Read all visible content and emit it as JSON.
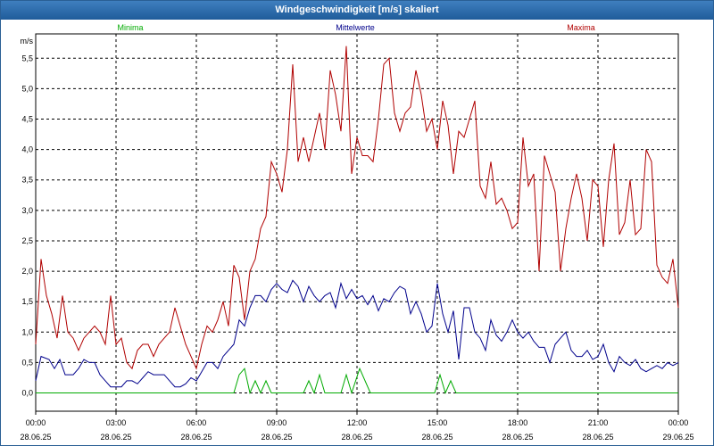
{
  "window": {
    "title": "Windgeschwindigkeit [m/s] skaliert"
  },
  "chart_data": {
    "type": "line",
    "ylabel": "m/s",
    "ylim": [
      -0.3,
      5.9
    ],
    "xlim": [
      0,
      24
    ],
    "y_ticks": [
      "0,0",
      "0,5",
      "1,0",
      "1,5",
      "2,0",
      "2,5",
      "3,0",
      "3,5",
      "4,0",
      "4,5",
      "5,0",
      "5,5"
    ],
    "y_tick_values": [
      0,
      0.5,
      1,
      1.5,
      2,
      2.5,
      3,
      3.5,
      4,
      4.5,
      5,
      5.5
    ],
    "x_ticks": [
      {
        "time": "00:00",
        "date": "28.06.25",
        "hour": 0
      },
      {
        "time": "03:00",
        "date": "28.06.25",
        "hour": 3
      },
      {
        "time": "06:00",
        "date": "28.06.25",
        "hour": 6
      },
      {
        "time": "09:00",
        "date": "28.06.25",
        "hour": 9
      },
      {
        "time": "12:00",
        "date": "28.06.25",
        "hour": 12
      },
      {
        "time": "15:00",
        "date": "28.06.25",
        "hour": 15
      },
      {
        "time": "18:00",
        "date": "28.06.25",
        "hour": 18
      },
      {
        "time": "21:00",
        "date": "28.06.25",
        "hour": 21
      },
      {
        "time": "00:00",
        "date": "29.06.25",
        "hour": 24
      }
    ],
    "grid": true,
    "legend_position": "top",
    "series": [
      {
        "name": "Minima",
        "color": "#00aa00",
        "points": [
          [
            0,
            0
          ],
          [
            7.4,
            0
          ],
          [
            7.6,
            0.3
          ],
          [
            7.8,
            0.4
          ],
          [
            8.0,
            0
          ],
          [
            8.2,
            0.2
          ],
          [
            8.4,
            0
          ],
          [
            8.6,
            0.2
          ],
          [
            8.8,
            0
          ],
          [
            10.0,
            0
          ],
          [
            10.2,
            0.2
          ],
          [
            10.4,
            0
          ],
          [
            10.6,
            0.3
          ],
          [
            10.8,
            0
          ],
          [
            11.4,
            0
          ],
          [
            11.6,
            0.3
          ],
          [
            11.8,
            0
          ],
          [
            12.1,
            0.4
          ],
          [
            12.5,
            0
          ],
          [
            14.9,
            0
          ],
          [
            15.1,
            0.3
          ],
          [
            15.3,
            0
          ],
          [
            15.5,
            0.2
          ],
          [
            15.7,
            0
          ],
          [
            24,
            0
          ]
        ]
      },
      {
        "name": "Mittelwerte",
        "color": "#00008b",
        "points": [
          [
            0,
            0.2
          ],
          [
            0.2,
            0.6
          ],
          [
            0.5,
            0.55
          ],
          [
            0.7,
            0.4
          ],
          [
            0.9,
            0.55
          ],
          [
            1.1,
            0.3
          ],
          [
            1.4,
            0.3
          ],
          [
            1.6,
            0.4
          ],
          [
            1.8,
            0.55
          ],
          [
            2.0,
            0.5
          ],
          [
            2.2,
            0.5
          ],
          [
            2.4,
            0.3
          ],
          [
            2.6,
            0.2
          ],
          [
            2.8,
            0.1
          ],
          [
            3.0,
            0.1
          ],
          [
            3.2,
            0.1
          ],
          [
            3.4,
            0.2
          ],
          [
            3.6,
            0.2
          ],
          [
            3.8,
            0.15
          ],
          [
            4.0,
            0.25
          ],
          [
            4.2,
            0.35
          ],
          [
            4.4,
            0.3
          ],
          [
            4.6,
            0.3
          ],
          [
            4.8,
            0.3
          ],
          [
            5.0,
            0.2
          ],
          [
            5.2,
            0.1
          ],
          [
            5.4,
            0.1
          ],
          [
            5.6,
            0.15
          ],
          [
            5.8,
            0.25
          ],
          [
            6.0,
            0.2
          ],
          [
            6.2,
            0.35
          ],
          [
            6.4,
            0.5
          ],
          [
            6.6,
            0.5
          ],
          [
            6.8,
            0.4
          ],
          [
            7.0,
            0.6
          ],
          [
            7.2,
            0.7
          ],
          [
            7.4,
            0.8
          ],
          [
            7.6,
            1.2
          ],
          [
            7.8,
            1.1
          ],
          [
            8.0,
            1.4
          ],
          [
            8.2,
            1.6
          ],
          [
            8.4,
            1.6
          ],
          [
            8.6,
            1.5
          ],
          [
            8.8,
            1.7
          ],
          [
            9.0,
            1.8
          ],
          [
            9.2,
            1.7
          ],
          [
            9.4,
            1.65
          ],
          [
            9.6,
            1.85
          ],
          [
            9.8,
            1.75
          ],
          [
            10.0,
            1.5
          ],
          [
            10.2,
            1.75
          ],
          [
            10.4,
            1.6
          ],
          [
            10.6,
            1.5
          ],
          [
            10.8,
            1.6
          ],
          [
            11.0,
            1.65
          ],
          [
            11.2,
            1.4
          ],
          [
            11.4,
            1.8
          ],
          [
            11.6,
            1.55
          ],
          [
            11.8,
            1.7
          ],
          [
            12.0,
            1.55
          ],
          [
            12.2,
            1.6
          ],
          [
            12.4,
            1.45
          ],
          [
            12.6,
            1.6
          ],
          [
            12.8,
            1.35
          ],
          [
            13.0,
            1.55
          ],
          [
            13.2,
            1.5
          ],
          [
            13.4,
            1.65
          ],
          [
            13.6,
            1.75
          ],
          [
            13.8,
            1.7
          ],
          [
            14.0,
            1.3
          ],
          [
            14.2,
            1.5
          ],
          [
            14.4,
            1.3
          ],
          [
            14.6,
            1.0
          ],
          [
            14.8,
            1.1
          ],
          [
            15.0,
            1.8
          ],
          [
            15.2,
            1.3
          ],
          [
            15.4,
            1.0
          ],
          [
            15.6,
            1.35
          ],
          [
            15.8,
            0.55
          ],
          [
            16.0,
            1.4
          ],
          [
            16.2,
            1.4
          ],
          [
            16.4,
            1.0
          ],
          [
            16.6,
            0.9
          ],
          [
            16.8,
            0.7
          ],
          [
            17.0,
            1.2
          ],
          [
            17.2,
            0.95
          ],
          [
            17.4,
            0.85
          ],
          [
            17.6,
            1.0
          ],
          [
            17.8,
            1.2
          ],
          [
            18.0,
            1.0
          ],
          [
            18.2,
            0.9
          ],
          [
            18.4,
            1.0
          ],
          [
            18.6,
            0.85
          ],
          [
            18.8,
            0.75
          ],
          [
            19.0,
            0.75
          ],
          [
            19.2,
            0.5
          ],
          [
            19.4,
            0.8
          ],
          [
            19.6,
            0.9
          ],
          [
            19.8,
            1.0
          ],
          [
            20.0,
            0.7
          ],
          [
            20.2,
            0.6
          ],
          [
            20.4,
            0.6
          ],
          [
            20.6,
            0.7
          ],
          [
            20.8,
            0.55
          ],
          [
            21.0,
            0.6
          ],
          [
            21.2,
            0.8
          ],
          [
            21.4,
            0.5
          ],
          [
            21.6,
            0.35
          ],
          [
            21.8,
            0.6
          ],
          [
            22.0,
            0.5
          ],
          [
            22.2,
            0.45
          ],
          [
            22.4,
            0.55
          ],
          [
            22.6,
            0.4
          ],
          [
            22.8,
            0.35
          ],
          [
            23.0,
            0.4
          ],
          [
            23.2,
            0.45
          ],
          [
            23.4,
            0.4
          ],
          [
            23.6,
            0.5
          ],
          [
            23.8,
            0.45
          ],
          [
            24.0,
            0.5
          ]
        ]
      },
      {
        "name": "Maxima",
        "color": "#b00000",
        "points": [
          [
            0,
            0.8
          ],
          [
            0.2,
            2.2
          ],
          [
            0.4,
            1.6
          ],
          [
            0.6,
            1.3
          ],
          [
            0.8,
            0.9
          ],
          [
            1.0,
            1.6
          ],
          [
            1.2,
            1.0
          ],
          [
            1.4,
            0.9
          ],
          [
            1.6,
            0.7
          ],
          [
            1.8,
            0.9
          ],
          [
            2.0,
            1.0
          ],
          [
            2.2,
            1.1
          ],
          [
            2.4,
            1.0
          ],
          [
            2.6,
            0.8
          ],
          [
            2.8,
            1.6
          ],
          [
            3.0,
            0.8
          ],
          [
            3.2,
            0.9
          ],
          [
            3.4,
            0.5
          ],
          [
            3.6,
            0.4
          ],
          [
            3.8,
            0.7
          ],
          [
            4.0,
            0.8
          ],
          [
            4.2,
            0.8
          ],
          [
            4.4,
            0.6
          ],
          [
            4.6,
            0.8
          ],
          [
            4.8,
            0.9
          ],
          [
            5.0,
            1.0
          ],
          [
            5.2,
            1.4
          ],
          [
            5.4,
            1.1
          ],
          [
            5.6,
            0.8
          ],
          [
            5.8,
            0.6
          ],
          [
            6.0,
            0.4
          ],
          [
            6.2,
            0.8
          ],
          [
            6.4,
            1.1
          ],
          [
            6.6,
            1.0
          ],
          [
            6.8,
            1.2
          ],
          [
            7.0,
            1.5
          ],
          [
            7.2,
            1.1
          ],
          [
            7.4,
            2.1
          ],
          [
            7.6,
            1.9
          ],
          [
            7.8,
            1.2
          ],
          [
            8.0,
            2.0
          ],
          [
            8.2,
            2.2
          ],
          [
            8.4,
            2.7
          ],
          [
            8.6,
            2.9
          ],
          [
            8.8,
            3.8
          ],
          [
            9.0,
            3.6
          ],
          [
            9.2,
            3.3
          ],
          [
            9.4,
            4.0
          ],
          [
            9.6,
            5.4
          ],
          [
            9.8,
            3.8
          ],
          [
            10.0,
            4.2
          ],
          [
            10.2,
            3.8
          ],
          [
            10.4,
            4.2
          ],
          [
            10.6,
            4.6
          ],
          [
            10.8,
            4.0
          ],
          [
            11.0,
            5.3
          ],
          [
            11.2,
            4.9
          ],
          [
            11.4,
            4.3
          ],
          [
            11.6,
            5.7
          ],
          [
            11.8,
            3.6
          ],
          [
            12.0,
            4.2
          ],
          [
            12.2,
            3.9
          ],
          [
            12.4,
            3.9
          ],
          [
            12.6,
            3.8
          ],
          [
            12.8,
            4.5
          ],
          [
            13.0,
            5.4
          ],
          [
            13.2,
            5.5
          ],
          [
            13.4,
            4.6
          ],
          [
            13.6,
            4.3
          ],
          [
            13.8,
            4.6
          ],
          [
            14.0,
            4.7
          ],
          [
            14.2,
            5.3
          ],
          [
            14.4,
            4.9
          ],
          [
            14.6,
            4.3
          ],
          [
            14.8,
            4.5
          ],
          [
            15.0,
            4.0
          ],
          [
            15.2,
            4.8
          ],
          [
            15.4,
            4.4
          ],
          [
            15.6,
            3.6
          ],
          [
            15.8,
            4.3
          ],
          [
            16.0,
            4.2
          ],
          [
            16.2,
            4.5
          ],
          [
            16.4,
            4.8
          ],
          [
            16.6,
            3.4
          ],
          [
            16.8,
            3.2
          ],
          [
            17.0,
            3.8
          ],
          [
            17.2,
            3.1
          ],
          [
            17.4,
            3.2
          ],
          [
            17.6,
            3.0
          ],
          [
            17.8,
            2.7
          ],
          [
            18.0,
            2.8
          ],
          [
            18.2,
            4.2
          ],
          [
            18.4,
            3.4
          ],
          [
            18.6,
            3.6
          ],
          [
            18.8,
            2.0
          ],
          [
            19.0,
            3.9
          ],
          [
            19.2,
            3.6
          ],
          [
            19.4,
            3.3
          ],
          [
            19.6,
            2.0
          ],
          [
            19.8,
            2.7
          ],
          [
            20.0,
            3.2
          ],
          [
            20.2,
            3.6
          ],
          [
            20.4,
            3.2
          ],
          [
            20.6,
            2.5
          ],
          [
            20.8,
            3.5
          ],
          [
            21.0,
            3.4
          ],
          [
            21.2,
            2.4
          ],
          [
            21.4,
            3.5
          ],
          [
            21.6,
            4.1
          ],
          [
            21.8,
            2.6
          ],
          [
            22.0,
            2.8
          ],
          [
            22.2,
            3.5
          ],
          [
            22.4,
            2.6
          ],
          [
            22.6,
            2.7
          ],
          [
            22.8,
            4.0
          ],
          [
            23.0,
            3.8
          ],
          [
            23.2,
            2.1
          ],
          [
            23.4,
            1.9
          ],
          [
            23.6,
            1.8
          ],
          [
            23.8,
            2.2
          ],
          [
            24.0,
            1.4
          ]
        ]
      }
    ]
  }
}
